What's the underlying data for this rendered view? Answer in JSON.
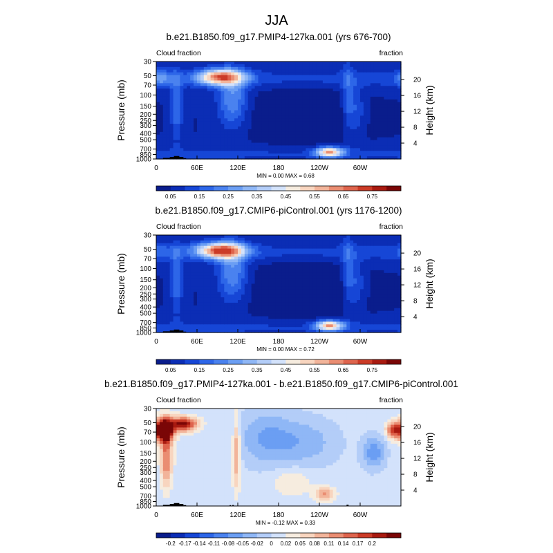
{
  "figure": {
    "title": "JJA"
  },
  "chart_data": [
    {
      "type": "heatmap",
      "title": "b.e21.B1850.f09_g17.PMIP4-127ka.001 (yrs 676-700)",
      "left_label": "Cloud fraction",
      "right_label": "fraction",
      "ylabel": "Pressure (mb)",
      "y2label": "Height (km)",
      "x_ticks": [
        "0",
        "60E",
        "120E",
        "180",
        "120W",
        "60W"
      ],
      "x_values": [
        0,
        60,
        120,
        180,
        240,
        300
      ],
      "xlim": [
        0,
        360
      ],
      "p_ticks": [
        "30",
        "50",
        "70",
        "100",
        "150",
        "200",
        "250",
        "300",
        "400",
        "500",
        "700",
        "850",
        "1000"
      ],
      "p_values": [
        30,
        50,
        70,
        100,
        150,
        200,
        250,
        300,
        400,
        500,
        700,
        850,
        1000
      ],
      "plim": [
        1000,
        30
      ],
      "h_ticks": [
        "20",
        "16",
        "12",
        "8",
        "4"
      ],
      "h_values": [
        20,
        16,
        12,
        8,
        4
      ],
      "stats": "MIN =   0.00   MAX =   0.68",
      "min": 0.0,
      "max": 0.68,
      "colorbar_labels": [
        "0.05",
        "0.15",
        "0.25",
        "0.35",
        "0.45",
        "0.55",
        "0.65",
        "0.75"
      ],
      "colors": [
        "#0a1d8c",
        "#0b2db5",
        "#1646d6",
        "#2d66e8",
        "#4a82ef",
        "#6b9ef3",
        "#8fb7f6",
        "#b3cdf8",
        "#d3e2fb",
        "#f6ecdf",
        "#f8d5bf",
        "#f2b49a",
        "#ea8d72",
        "#de644d",
        "#cb3b27",
        "#a81a10",
        "#7a0606"
      ]
    },
    {
      "type": "heatmap",
      "title": "b.e21.B1850.f09_g17.CMIP6-piControl.001 (yrs 1176-1200)",
      "left_label": "Cloud fraction",
      "right_label": "fraction",
      "ylabel": "Pressure (mb)",
      "y2label": "Height (km)",
      "x_ticks": [
        "0",
        "60E",
        "120E",
        "180",
        "120W",
        "60W"
      ],
      "x_values": [
        0,
        60,
        120,
        180,
        240,
        300
      ],
      "xlim": [
        0,
        360
      ],
      "p_ticks": [
        "30",
        "50",
        "70",
        "100",
        "150",
        "200",
        "250",
        "300",
        "400",
        "500",
        "700",
        "850",
        "1000"
      ],
      "p_values": [
        30,
        50,
        70,
        100,
        150,
        200,
        250,
        300,
        400,
        500,
        700,
        850,
        1000
      ],
      "plim": [
        1000,
        30
      ],
      "h_ticks": [
        "20",
        "16",
        "12",
        "8",
        "4"
      ],
      "h_values": [
        20,
        16,
        12,
        8,
        4
      ],
      "stats": "MIN =   0.00   MAX =   0.72",
      "min": 0.0,
      "max": 0.72,
      "colorbar_labels": [
        "0.05",
        "0.15",
        "0.25",
        "0.35",
        "0.45",
        "0.55",
        "0.65",
        "0.75"
      ],
      "colors": [
        "#0a1d8c",
        "#0b2db5",
        "#1646d6",
        "#2d66e8",
        "#4a82ef",
        "#6b9ef3",
        "#8fb7f6",
        "#b3cdf8",
        "#d3e2fb",
        "#f6ecdf",
        "#f8d5bf",
        "#f2b49a",
        "#ea8d72",
        "#de644d",
        "#cb3b27",
        "#a81a10",
        "#7a0606"
      ]
    },
    {
      "type": "heatmap",
      "title": "b.e21.B1850.f09_g17.PMIP4-127ka.001 - b.e21.B1850.f09_g17.CMIP6-piControl.001",
      "left_label": "Cloud fraction",
      "right_label": "fraction",
      "ylabel": "Pressure (mb)",
      "y2label": "Height (km)",
      "x_ticks": [
        "0",
        "60E",
        "120E",
        "180",
        "120W",
        "60W"
      ],
      "x_values": [
        0,
        60,
        120,
        180,
        240,
        300
      ],
      "xlim": [
        0,
        360
      ],
      "p_ticks": [
        "30",
        "50",
        "70",
        "100",
        "150",
        "200",
        "250",
        "300",
        "400",
        "500",
        "700",
        "850",
        "1000"
      ],
      "p_values": [
        30,
        50,
        70,
        100,
        150,
        200,
        250,
        300,
        400,
        500,
        700,
        850,
        1000
      ],
      "plim": [
        1000,
        30
      ],
      "h_ticks": [
        "20",
        "16",
        "12",
        "8",
        "4"
      ],
      "h_values": [
        20,
        16,
        12,
        8,
        4
      ],
      "stats": "MIN =  -0.12   MAX =   0.33",
      "min": -0.12,
      "max": 0.33,
      "colorbar_labels": [
        "-0.2",
        "-0.17",
        "-0.14",
        "-0.11",
        "-0.08",
        "-0.05",
        "-0.02",
        "0",
        "0.02",
        "0.05",
        "0.08",
        "0.11",
        "0.14",
        "0.17",
        "0.2"
      ],
      "colors": [
        "#0a1d8c",
        "#0b2db5",
        "#1646d6",
        "#2d66e8",
        "#4a82ef",
        "#6b9ef3",
        "#8fb7f6",
        "#b3cdf8",
        "#d3e2fb",
        "#f6ecdf",
        "#f8d5bf",
        "#f2b49a",
        "#ea8d72",
        "#de644d",
        "#cb3b27",
        "#a81a10",
        "#7a0606"
      ]
    }
  ]
}
